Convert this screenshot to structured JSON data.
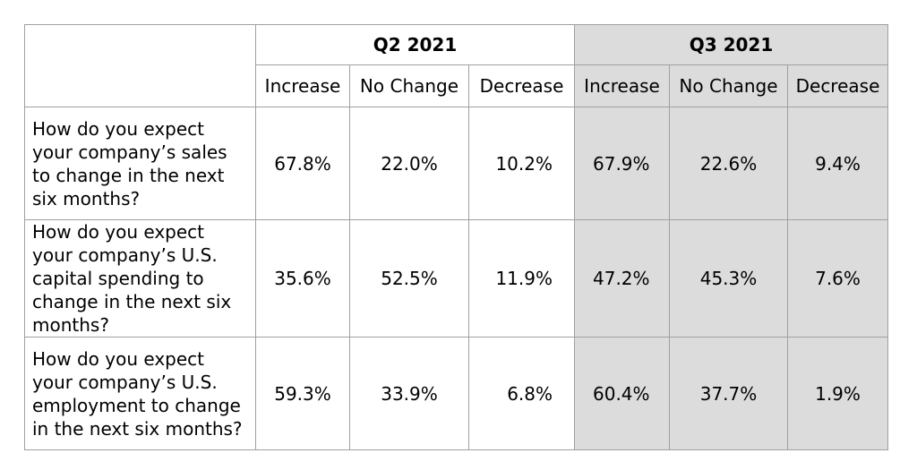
{
  "periods": [
    {
      "label": "Q2 2021"
    },
    {
      "label": "Q3 2021"
    }
  ],
  "sub_headers": [
    "Increase",
    "No Change",
    "Decrease"
  ],
  "rows": [
    {
      "question": "How do you expect your company’s sales to change in the next six months?",
      "q2": [
        "67.8%",
        "22.0%",
        "10.2%"
      ],
      "q3": [
        "67.9%",
        "22.6%",
        "9.4%"
      ]
    },
    {
      "question": "How do you expect your company’s U.S. capital spending to change in the next six months?",
      "q2": [
        "35.6%",
        "52.5%",
        "11.9%"
      ],
      "q3": [
        "47.2%",
        "45.3%",
        "7.6%"
      ]
    },
    {
      "question": "How do you expect your company’s U.S. employment to change in the next six months?",
      "q2": [
        "59.3%",
        "33.9%",
        "6.8%"
      ],
      "q3": [
        "60.4%",
        "37.7%",
        "1.9%"
      ]
    }
  ],
  "colors": {
    "shaded_column_bg": "#dcdcdc",
    "border": "#a0a0a0"
  }
}
